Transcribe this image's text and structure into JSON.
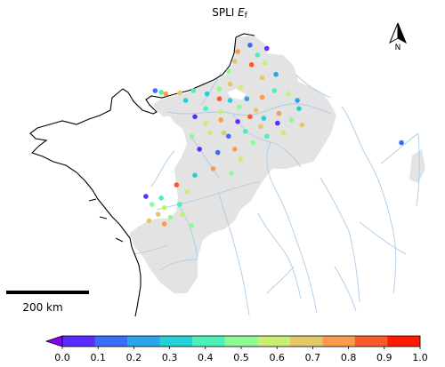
{
  "title": {
    "text": "SPLI ",
    "italic": "E",
    "sub": "f"
  },
  "north_arrow": {
    "label": "N"
  },
  "scalebar": {
    "label": "200 km"
  },
  "colorbar": {
    "ticks": [
      "0.0",
      "0.1",
      "0.2",
      "0.3",
      "0.4",
      "0.5",
      "0.6",
      "0.7",
      "0.8",
      "0.9",
      "1.0"
    ],
    "colors": [
      "#5b2cff",
      "#3a6df5",
      "#2aa4e8",
      "#24d0d6",
      "#4cf0b6",
      "#8cfb94",
      "#c8ef74",
      "#e4c96a",
      "#fb9c4c",
      "#fb5a2c",
      "#ff1a00"
    ],
    "extend_color": "#8a00f5"
  },
  "colors": {
    "region_fill": "#e3e3e3",
    "river": "#a8ccea",
    "coast": "#000000"
  },
  "stations": [
    {
      "lon": -0.75,
      "lat": 49.35,
      "v": 0.15
    },
    {
      "lon": -0.55,
      "lat": 49.3,
      "v": 0.45
    },
    {
      "lon": -0.4,
      "lat": 49.25,
      "v": 0.85
    },
    {
      "lon": 0.05,
      "lat": 49.28,
      "v": 0.75
    },
    {
      "lon": 0.5,
      "lat": 49.35,
      "v": 0.45
    },
    {
      "lon": 0.95,
      "lat": 49.25,
      "v": 0.3
    },
    {
      "lon": 1.35,
      "lat": 49.4,
      "v": 0.55
    },
    {
      "lon": 1.7,
      "lat": 49.55,
      "v": 0.75
    },
    {
      "lon": 2.05,
      "lat": 49.45,
      "v": 0.65
    },
    {
      "lon": 1.35,
      "lat": 49.1,
      "v": 0.95
    },
    {
      "lon": 1.7,
      "lat": 49.05,
      "v": 0.35
    },
    {
      "lon": 2.25,
      "lat": 49.1,
      "v": 0.25
    },
    {
      "lon": 2.75,
      "lat": 49.15,
      "v": 0.85
    },
    {
      "lon": 3.15,
      "lat": 49.35,
      "v": 0.45
    },
    {
      "lon": 3.6,
      "lat": 49.25,
      "v": 0.65
    },
    {
      "lon": 3.9,
      "lat": 49.05,
      "v": 0.25
    },
    {
      "lon": 2.55,
      "lat": 48.75,
      "v": 0.75
    },
    {
      "lon": 2.0,
      "lat": 48.85,
      "v": 0.55
    },
    {
      "lon": 1.4,
      "lat": 48.7,
      "v": 0.65
    },
    {
      "lon": 0.9,
      "lat": 48.8,
      "v": 0.45
    },
    {
      "lon": 0.55,
      "lat": 48.55,
      "v": 0.05
    },
    {
      "lon": 0.9,
      "lat": 48.35,
      "v": 0.65
    },
    {
      "lon": 1.4,
      "lat": 48.45,
      "v": 0.85
    },
    {
      "lon": 1.95,
      "lat": 48.4,
      "v": 0.05
    },
    {
      "lon": 2.35,
      "lat": 48.55,
      "v": 0.95
    },
    {
      "lon": 2.8,
      "lat": 48.5,
      "v": 0.35
    },
    {
      "lon": 3.3,
      "lat": 48.65,
      "v": 0.85
    },
    {
      "lon": 3.7,
      "lat": 48.45,
      "v": 0.55
    },
    {
      "lon": 3.25,
      "lat": 48.35,
      "v": 0.05
    },
    {
      "lon": 2.7,
      "lat": 48.25,
      "v": 0.75
    },
    {
      "lon": 2.2,
      "lat": 48.1,
      "v": 0.45
    },
    {
      "lon": 1.65,
      "lat": 47.95,
      "v": 0.15
    },
    {
      "lon": 1.05,
      "lat": 48.05,
      "v": 0.65
    },
    {
      "lon": 0.45,
      "lat": 47.95,
      "v": 0.55
    },
    {
      "lon": 1.5,
      "lat": 48.05,
      "v": 0.75
    },
    {
      "lon": 2.9,
      "lat": 47.95,
      "v": 0.45
    },
    {
      "lon": 3.45,
      "lat": 48.05,
      "v": 0.65
    },
    {
      "lon": 2.45,
      "lat": 47.75,
      "v": 0.55
    },
    {
      "lon": 1.85,
      "lat": 47.55,
      "v": 0.85
    },
    {
      "lon": 1.3,
      "lat": 47.45,
      "v": 0.15
    },
    {
      "lon": 0.7,
      "lat": 47.55,
      "v": 0.05
    },
    {
      "lon": 2.05,
      "lat": 47.25,
      "v": 0.65
    },
    {
      "lon": 1.15,
      "lat": 46.95,
      "v": 0.85
    },
    {
      "lon": 0.55,
      "lat": 46.75,
      "v": 0.35
    },
    {
      "lon": 1.75,
      "lat": 46.8,
      "v": 0.55
    },
    {
      "lon": 0.3,
      "lat": 46.25,
      "v": 0.65
    },
    {
      "lon": -0.05,
      "lat": 46.45,
      "v": 0.95
    },
    {
      "lon": -0.55,
      "lat": 46.05,
      "v": 0.45
    },
    {
      "lon": -1.05,
      "lat": 46.1,
      "v": 0.05
    },
    {
      "lon": -0.85,
      "lat": 45.85,
      "v": 0.55
    },
    {
      "lon": -0.45,
      "lat": 45.75,
      "v": 0.65
    },
    {
      "lon": 0.05,
      "lat": 45.85,
      "v": 0.45
    },
    {
      "lon": -0.25,
      "lat": 45.45,
      "v": 0.55
    },
    {
      "lon": -0.65,
      "lat": 45.55,
      "v": 0.75
    },
    {
      "lon": 0.15,
      "lat": 45.55,
      "v": 0.65
    },
    {
      "lon": -0.95,
      "lat": 45.35,
      "v": 0.75
    },
    {
      "lon": -0.45,
      "lat": 45.25,
      "v": 0.85
    },
    {
      "lon": 0.45,
      "lat": 45.2,
      "v": 0.55
    },
    {
      "lon": 2.35,
      "lat": 50.75,
      "v": 0.15
    },
    {
      "lon": 2.9,
      "lat": 50.65,
      "v": 0.05
    },
    {
      "lon": 1.95,
      "lat": 50.55,
      "v": 0.85
    },
    {
      "lon": 2.6,
      "lat": 50.45,
      "v": 0.45
    },
    {
      "lon": 1.85,
      "lat": 50.25,
      "v": 0.75
    },
    {
      "lon": 2.4,
      "lat": 50.15,
      "v": 0.95
    },
    {
      "lon": 2.85,
      "lat": 50.2,
      "v": 0.65
    },
    {
      "lon": 1.65,
      "lat": 49.95,
      "v": 0.55
    },
    {
      "lon": 3.2,
      "lat": 49.85,
      "v": 0.25
    },
    {
      "lon": 2.75,
      "lat": 49.75,
      "v": 0.75
    },
    {
      "lon": 7.3,
      "lat": 47.75,
      "v": 0.15
    },
    {
      "lon": 0.25,
      "lat": 49.05,
      "v": 0.35
    },
    {
      "lon": 3.95,
      "lat": 48.8,
      "v": 0.35
    },
    {
      "lon": 4.05,
      "lat": 48.3,
      "v": 0.75
    }
  ]
}
